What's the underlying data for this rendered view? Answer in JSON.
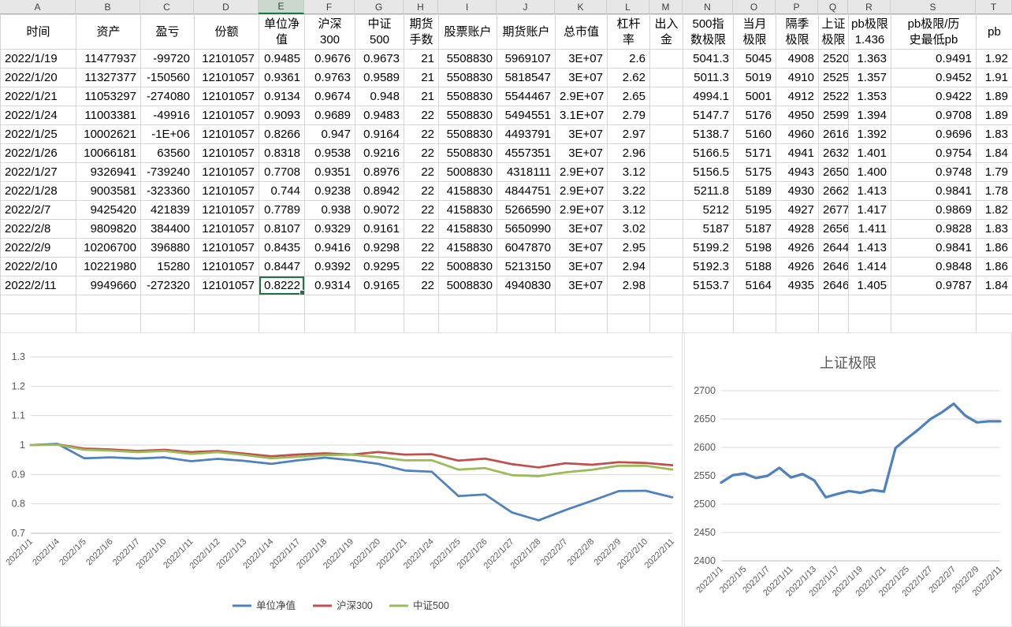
{
  "spreadsheet": {
    "column_letters": [
      "A",
      "B",
      "C",
      "D",
      "E",
      "F",
      "G",
      "H",
      "I",
      "J",
      "K",
      "L",
      "M",
      "N",
      "O",
      "P",
      "Q",
      "R",
      "S",
      "T"
    ],
    "selected_column": "E",
    "headers": [
      "时间",
      "资产",
      "盈亏",
      "份额",
      "单位净\n值",
      "沪深\n300",
      "中证\n500",
      "期货\n手数",
      "股票账户",
      "期货账户",
      "总市值",
      "杠杆\n率",
      "出入\n金",
      "500指\n数极限",
      "当月\n极限",
      "隔季\n极限",
      "上证\n极限",
      "pb极限\n1.436",
      "pb极限/历\n史最低pb",
      "pb"
    ],
    "red_columns": [
      16,
      18
    ],
    "rows": [
      [
        "2022/1/19",
        "11477937",
        "-99720",
        "12101057",
        "0.9485",
        "0.9676",
        "0.9673",
        "21",
        "5508830",
        "5969107",
        "3E+07",
        "2.6",
        "",
        "5041.3",
        "5045",
        "4908",
        "2520",
        "1.363",
        "0.9491",
        "1.92"
      ],
      [
        "2022/1/20",
        "11327377",
        "-150560",
        "12101057",
        "0.9361",
        "0.9763",
        "0.9589",
        "21",
        "5508830",
        "5818547",
        "3E+07",
        "2.62",
        "",
        "5011.3",
        "5019",
        "4910",
        "2525",
        "1.357",
        "0.9452",
        "1.91"
      ],
      [
        "2022/1/21",
        "11053297",
        "-274080",
        "12101057",
        "0.9134",
        "0.9674",
        "0.948",
        "21",
        "5508830",
        "5544467",
        "2.9E+07",
        "2.65",
        "",
        "4994.1",
        "5001",
        "4912",
        "2522",
        "1.353",
        "0.9422",
        "1.89"
      ],
      [
        "2022/1/24",
        "11003381",
        "-49916",
        "12101057",
        "0.9093",
        "0.9689",
        "0.9483",
        "22",
        "5508830",
        "5494551",
        "3.1E+07",
        "2.79",
        "",
        "5147.7",
        "5176",
        "4950",
        "2599",
        "1.394",
        "0.9708",
        "1.89"
      ],
      [
        "2022/1/25",
        "10002621",
        "-1E+06",
        "12101057",
        "0.8266",
        "0.947",
        "0.9164",
        "22",
        "5508830",
        "4493791",
        "3E+07",
        "2.97",
        "",
        "5138.7",
        "5160",
        "4960",
        "2616",
        "1.392",
        "0.9696",
        "1.83"
      ],
      [
        "2022/1/26",
        "10066181",
        "63560",
        "12101057",
        "0.8318",
        "0.9538",
        "0.9216",
        "22",
        "5508830",
        "4557351",
        "3E+07",
        "2.96",
        "",
        "5166.5",
        "5171",
        "4941",
        "2632",
        "1.401",
        "0.9754",
        "1.84"
      ],
      [
        "2022/1/27",
        "9326941",
        "-739240",
        "12101057",
        "0.7708",
        "0.9351",
        "0.8976",
        "22",
        "5008830",
        "4318111",
        "2.9E+07",
        "3.12",
        "",
        "5156.5",
        "5175",
        "4943",
        "2650",
        "1.400",
        "0.9748",
        "1.79"
      ],
      [
        "2022/1/28",
        "9003581",
        "-323360",
        "12101057",
        "0.744",
        "0.9238",
        "0.8942",
        "22",
        "4158830",
        "4844751",
        "2.9E+07",
        "3.22",
        "",
        "5211.8",
        "5189",
        "4930",
        "2662",
        "1.413",
        "0.9841",
        "1.78"
      ],
      [
        "2022/2/7",
        "9425420",
        "421839",
        "12101057",
        "0.7789",
        "0.938",
        "0.9072",
        "22",
        "4158830",
        "5266590",
        "2.9E+07",
        "3.12",
        "",
        "5212",
        "5195",
        "4927",
        "2677",
        "1.417",
        "0.9869",
        "1.82"
      ],
      [
        "2022/2/8",
        "9809820",
        "384400",
        "12101057",
        "0.8107",
        "0.9329",
        "0.9161",
        "22",
        "4158830",
        "5650990",
        "3E+07",
        "3.02",
        "",
        "5187",
        "5187",
        "4928",
        "2656",
        "1.411",
        "0.9828",
        "1.83"
      ],
      [
        "2022/2/9",
        "10206700",
        "396880",
        "12101057",
        "0.8435",
        "0.9416",
        "0.9298",
        "22",
        "4158830",
        "6047870",
        "3E+07",
        "2.95",
        "",
        "5199.2",
        "5198",
        "4926",
        "2644",
        "1.413",
        "0.9841",
        "1.86"
      ],
      [
        "2022/2/10",
        "10221980",
        "15280",
        "12101057",
        "0.8447",
        "0.9392",
        "0.9295",
        "22",
        "5008830",
        "5213150",
        "3E+07",
        "2.94",
        "",
        "5192.3",
        "5188",
        "4926",
        "2646",
        "1.414",
        "0.9848",
        "1.86"
      ],
      [
        "2022/2/11",
        "9949660",
        "-272320",
        "12101057",
        "0.8222",
        "0.9314",
        "0.9165",
        "22",
        "5008830",
        "4940830",
        "3E+07",
        "2.98",
        "",
        "5153.7",
        "5164",
        "4935",
        "2646",
        "1.405",
        "0.9787",
        "1.84"
      ]
    ],
    "selected_cell": {
      "row": 12,
      "col": 4,
      "value": "0.8222"
    },
    "empty_rows": 2
  },
  "colors": {
    "selection_green": "#217346",
    "red_text": "#FF0000",
    "grid_line": "#D4D4D4",
    "chart_grid": "#D9D9D9",
    "axis_text": "#595959",
    "series_blue": "#4F81BD",
    "series_red": "#C0504D",
    "series_green": "#9BBB59"
  },
  "chart_data": [
    {
      "type": "line",
      "title": "",
      "x": [
        "2022/1/1",
        "2022/1/4",
        "2022/1/5",
        "2022/1/6",
        "2022/1/7",
        "2022/1/10",
        "2022/1/11",
        "2022/1/12",
        "2022/1/13",
        "2022/1/14",
        "2022/1/17",
        "2022/1/18",
        "2022/1/19",
        "2022/1/20",
        "2022/1/21",
        "2022/1/24",
        "2022/1/25",
        "2022/1/26",
        "2022/1/27",
        "2022/1/28",
        "2022/2/7",
        "2022/2/8",
        "2022/2/9",
        "2022/2/10",
        "2022/2/11"
      ],
      "series": [
        {
          "name": "单位净值",
          "color": "#4F81BD",
          "values": [
            1.0,
            1.004,
            0.955,
            0.958,
            0.954,
            0.958,
            0.945,
            0.953,
            0.946,
            0.936,
            0.948,
            0.957,
            0.9485,
            0.9361,
            0.9134,
            0.9093,
            0.8266,
            0.8318,
            0.7708,
            0.744,
            0.7789,
            0.8107,
            0.8435,
            0.8447,
            0.8222
          ]
        },
        {
          "name": "沪深300",
          "color": "#C0504D",
          "values": [
            1.0,
            1.002,
            0.988,
            0.985,
            0.98,
            0.984,
            0.976,
            0.98,
            0.971,
            0.962,
            0.968,
            0.972,
            0.9676,
            0.9763,
            0.9674,
            0.9689,
            0.947,
            0.9538,
            0.9351,
            0.9238,
            0.938,
            0.9329,
            0.9416,
            0.9392,
            0.9314
          ]
        },
        {
          "name": "中证500",
          "color": "#9BBB59",
          "values": [
            1.0,
            1.001,
            0.984,
            0.981,
            0.976,
            0.98,
            0.97,
            0.976,
            0.966,
            0.955,
            0.96,
            0.966,
            0.9673,
            0.9589,
            0.948,
            0.9483,
            0.9164,
            0.9216,
            0.8976,
            0.8942,
            0.9072,
            0.9161,
            0.9298,
            0.9295,
            0.9165
          ]
        }
      ],
      "ylim": [
        0.7,
        1.3
      ],
      "yticks": [
        "0.7",
        "0.8",
        "0.9",
        "1",
        "1.1",
        "1.2",
        "1.3"
      ],
      "xtick_interval": 1,
      "grid": true,
      "legend_position": "bottom"
    },
    {
      "type": "line",
      "title": "上证极限",
      "x": [
        "2022/1/1",
        "2022/1/4",
        "2022/1/5",
        "2022/1/6",
        "2022/1/7",
        "2022/1/10",
        "2022/1/11",
        "2022/1/12",
        "2022/1/13",
        "2022/1/14",
        "2022/1/17",
        "2022/1/18",
        "2022/1/19",
        "2022/1/20",
        "2022/1/21",
        "2022/1/24",
        "2022/1/25",
        "2022/1/26",
        "2022/1/27",
        "2022/1/28",
        "2022/2/7",
        "2022/2/8",
        "2022/2/9",
        "2022/2/10",
        "2022/2/11"
      ],
      "series": [
        {
          "name": "上证极限",
          "color": "#4F81BD",
          "values": [
            2538,
            2551,
            2554,
            2546,
            2550,
            2564,
            2547,
            2553,
            2542,
            2512,
            2518,
            2523,
            2520,
            2525,
            2522,
            2599,
            2616,
            2632,
            2650,
            2662,
            2677,
            2656,
            2644,
            2646,
            2646
          ]
        }
      ],
      "ylim": [
        2400,
        2700
      ],
      "yticks": [
        "2400",
        "2450",
        "2500",
        "2550",
        "2600",
        "2650",
        "2700"
      ],
      "xtick_interval": 2,
      "grid": true,
      "legend_position": "none"
    }
  ]
}
